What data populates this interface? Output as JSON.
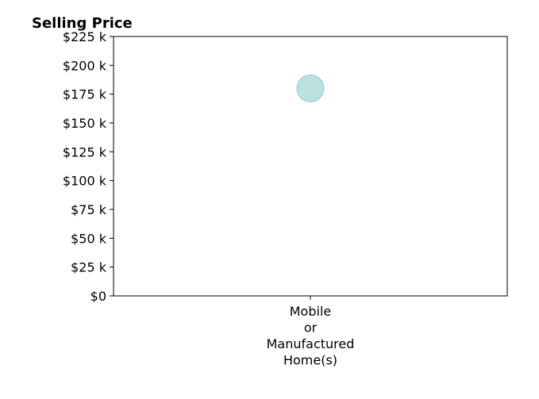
{
  "chart_data": {
    "type": "scatter",
    "title": "Selling Price",
    "xlabel": "",
    "ylabel": "",
    "categories": [
      "Mobile\nor\nManufactured\nHome(s)"
    ],
    "series": [
      {
        "values": [
          180000
        ]
      }
    ],
    "ylim": [
      0,
      225000
    ],
    "yticks": [
      0,
      25000,
      50000,
      75000,
      100000,
      125000,
      150000,
      175000,
      200000,
      225000
    ],
    "ytick_labels": [
      "$0",
      "$25 k",
      "$50 k",
      "$75 k",
      "$100 k",
      "$125 k",
      "$150 k",
      "$175 k",
      "$200 k",
      "$225 k"
    ],
    "grid": false,
    "point_color": "#8ecfc9"
  }
}
